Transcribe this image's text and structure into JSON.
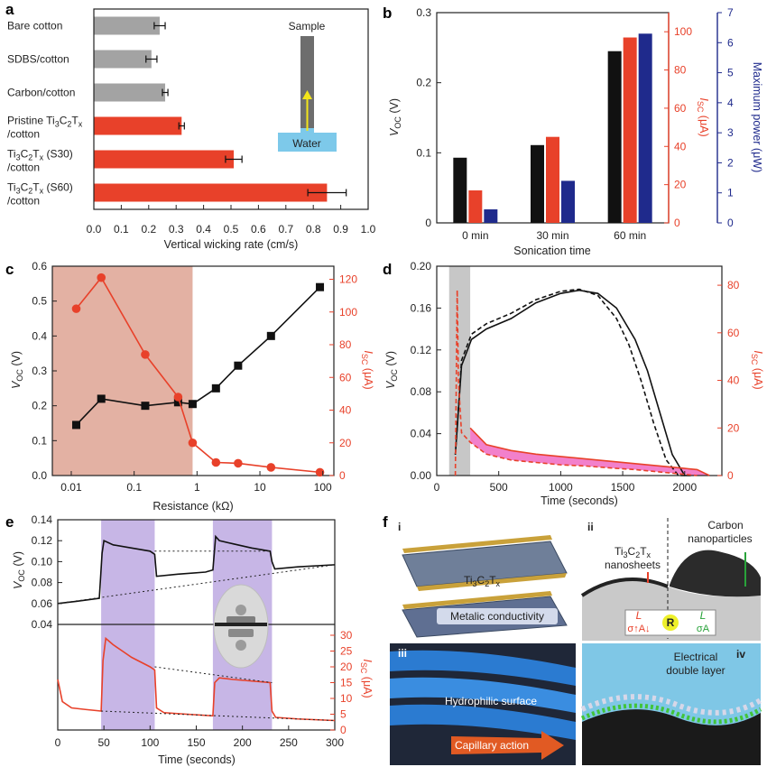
{
  "panel_letters": [
    "a",
    "b",
    "c",
    "d",
    "e",
    "f"
  ],
  "colors": {
    "red": "#e8412a",
    "gray": "#a3a3a3",
    "black": "#111111",
    "blue": "#1f2a8c",
    "pink_fill": "#f06ac2",
    "shade_c": "#e3b1a3",
    "shade_d": "#c7c7c7",
    "shade_e": "#c7b6e6",
    "water": "#7dc9ea"
  },
  "chart_data": [
    {
      "panel": "a",
      "type": "bar",
      "orientation": "horizontal",
      "categories": [
        "Bare cotton",
        "SDBS/cotton",
        "Carbon/cotton",
        "Pristine Ti3C2Tx /cotton",
        "Ti3C2Tx (S30) /cotton",
        "Ti3C2Tx (S60) /cotton"
      ],
      "category_lines": [
        [
          "Bare cotton"
        ],
        [
          "SDBS/cotton"
        ],
        [
          "Carbon/cotton"
        ],
        [
          "Pristine Ti",
          "3",
          "C",
          "2",
          "T",
          "x"
        ],
        [
          "Ti",
          "3",
          "C",
          "2",
          "T",
          "x",
          " (S30)"
        ],
        [
          "Ti",
          "3",
          "C",
          "2",
          "T",
          "x",
          " (S60)"
        ]
      ],
      "category_line2": [
        "",
        "",
        "",
        "/cotton",
        "/cotton",
        "/cotton"
      ],
      "values": [
        0.24,
        0.21,
        0.26,
        0.32,
        0.51,
        0.85
      ],
      "errors": [
        0.02,
        0.02,
        0.01,
        0.01,
        0.03,
        0.07
      ],
      "bar_colors": [
        "#a3a3a3",
        "#a3a3a3",
        "#a3a3a3",
        "#e8412a",
        "#e8412a",
        "#e8412a"
      ],
      "xlabel": "Vertical wicking rate (cm/s)",
      "xlim": [
        0,
        1.0
      ],
      "xticks": [
        "0.0",
        "0.1",
        "0.2",
        "0.3",
        "0.4",
        "0.5",
        "0.6",
        "0.7",
        "0.8",
        "0.9",
        "1.0"
      ],
      "inset_labels": {
        "top": "Sample",
        "bottom": "Water"
      }
    },
    {
      "panel": "b",
      "type": "bar",
      "categories": [
        "0 min",
        "30 min",
        "60 min"
      ],
      "xlabel": "Sonication time",
      "series": [
        {
          "name": "Voc",
          "axis": "left",
          "color": "#111111",
          "values": [
            0.093,
            0.111,
            0.245
          ]
        },
        {
          "name": "Isc",
          "axis": "right1",
          "color": "#e8412a",
          "values": [
            17,
            45,
            97
          ]
        },
        {
          "name": "Maximum power",
          "axis": "right2",
          "color": "#1f2a8c",
          "values": [
            0.45,
            1.4,
            6.3
          ]
        }
      ],
      "axes": {
        "left": {
          "label_main": "V",
          "label_sub": "OC",
          "label_unit": " (V)",
          "ylim": [
            0,
            0.3
          ],
          "ticks": [
            "0",
            "0.1",
            "0.2",
            "0.3"
          ]
        },
        "right1": {
          "label_main": "I",
          "label_sub": "SC",
          "label_unit": " (μA)",
          "ylim": [
            0,
            110
          ],
          "ticks": [
            "0",
            "20",
            "40",
            "60",
            "80",
            "100"
          ]
        },
        "right2": {
          "label": "Maximum power (μW)",
          "ylim": [
            0,
            7
          ],
          "ticks": [
            "0",
            "1",
            "2",
            "3",
            "4",
            "5",
            "6",
            "7"
          ]
        }
      }
    },
    {
      "panel": "c",
      "type": "line",
      "xscale": "log",
      "xlabel": "Resistance (kΩ)",
      "xlim": [
        0.005,
        150
      ],
      "xticks": [
        "0.01",
        "0.1",
        "1",
        "10",
        "100"
      ],
      "shaded_x": [
        0.005,
        0.85
      ],
      "series": [
        {
          "name": "Voc",
          "axis": "left",
          "color": "#111111",
          "marker": "square",
          "x": [
            0.012,
            0.03,
            0.15,
            0.5,
            0.85,
            2,
            4.5,
            15,
            90
          ],
          "y": [
            0.145,
            0.22,
            0.2,
            0.21,
            0.205,
            0.25,
            0.315,
            0.4,
            0.54
          ]
        },
        {
          "name": "Isc",
          "axis": "right",
          "color": "#e8412a",
          "marker": "circle",
          "x": [
            0.012,
            0.03,
            0.15,
            0.5,
            0.85,
            2,
            4.5,
            15,
            90
          ],
          "y": [
            102,
            121,
            74,
            48,
            20,
            8,
            7.5,
            5,
            2
          ]
        }
      ],
      "axes": {
        "left": {
          "label_main": "V",
          "label_sub": "OC",
          "label_unit": " (V)",
          "ylim": [
            0,
            0.6
          ],
          "ticks": [
            "0.0",
            "0.1",
            "0.2",
            "0.3",
            "0.4",
            "0.5",
            "0.6"
          ]
        },
        "right": {
          "label_main": "I",
          "label_sub": "SC",
          "label_unit": " (μA)",
          "ylim": [
            0,
            128
          ],
          "ticks": [
            "0",
            "20",
            "40",
            "60",
            "80",
            "100",
            "120"
          ]
        }
      }
    },
    {
      "panel": "d",
      "type": "line",
      "xlabel": "Time (seconds)",
      "xlim": [
        0,
        2300
      ],
      "xticks": [
        "0",
        "500",
        "1000",
        "1500",
        "2000"
      ],
      "shaded_x": [
        100,
        270
      ],
      "series": [
        {
          "name": "Voc (solid)",
          "axis": "left",
          "color": "#111111",
          "style": "solid",
          "x": [
            150,
            200,
            280,
            400,
            600,
            800,
            1000,
            1150,
            1300,
            1450,
            1600,
            1700,
            1800,
            1900,
            2000,
            2050
          ],
          "y": [
            0.02,
            0.105,
            0.13,
            0.14,
            0.15,
            0.165,
            0.174,
            0.177,
            0.174,
            0.16,
            0.13,
            0.1,
            0.06,
            0.02,
            0.0,
            0.0
          ]
        },
        {
          "name": "Voc (dashed)",
          "axis": "left",
          "color": "#111111",
          "style": "dashed",
          "x": [
            150,
            200,
            280,
            400,
            600,
            800,
            1000,
            1150,
            1300,
            1450,
            1550,
            1650,
            1750,
            1850,
            1950,
            2000
          ],
          "y": [
            0.02,
            0.11,
            0.135,
            0.145,
            0.155,
            0.168,
            0.176,
            0.178,
            0.172,
            0.15,
            0.125,
            0.09,
            0.05,
            0.015,
            0.0,
            0.0
          ]
        },
        {
          "name": "Isc (solid)",
          "axis": "right",
          "color": "#e8412a",
          "style": "solid",
          "x": [
            270,
            400,
            600,
            800,
            1000,
            1200,
            1400,
            1600,
            1800,
            2000,
            2100,
            2200
          ],
          "y": [
            20,
            13,
            10.5,
            9,
            8,
            7,
            6,
            5,
            4,
            3,
            2.5,
            0
          ]
        },
        {
          "name": "Isc (dashed)",
          "axis": "right",
          "color": "#e8412a",
          "style": "dashed",
          "x": [
            150,
            165,
            175,
            200,
            270,
            400,
            600,
            800,
            1000,
            1200,
            1400,
            1600,
            1800,
            2000,
            2100
          ],
          "y": [
            0,
            78,
            40,
            18,
            14,
            9,
            6.5,
            5.5,
            4.5,
            4,
            3.2,
            2.5,
            1.5,
            0.5,
            0
          ]
        }
      ],
      "axes": {
        "left": {
          "label_main": "V",
          "label_sub": "OC",
          "label_unit": " (V)",
          "ylim": [
            0,
            0.2
          ],
          "ticks": [
            "0.00",
            "0.04",
            "0.08",
            "0.12",
            "0.16",
            "0.20"
          ]
        },
        "right": {
          "label_main": "I",
          "label_sub": "SC",
          "label_unit": " (μA)",
          "ylim": [
            0,
            88
          ],
          "ticks": [
            "0",
            "20",
            "40",
            "60",
            "80"
          ]
        }
      }
    },
    {
      "panel": "e",
      "type": "line",
      "xlabel": "Time (seconds)",
      "xlim": [
        0,
        300
      ],
      "xticks": [
        "0",
        "50",
        "100",
        "150",
        "200",
        "250",
        "300"
      ],
      "shaded_x": [
        [
          47,
          105
        ],
        [
          168,
          232
        ]
      ],
      "series": [
        {
          "name": "Voc",
          "axis": "top",
          "color": "#111111",
          "x": [
            0,
            20,
            45,
            48,
            50,
            60,
            80,
            100,
            105,
            107,
            130,
            160,
            168,
            171,
            175,
            190,
            210,
            230,
            232,
            235,
            260,
            300
          ],
          "y": [
            0.06,
            0.062,
            0.065,
            0.108,
            0.12,
            0.116,
            0.113,
            0.11,
            0.107,
            0.086,
            0.088,
            0.09,
            0.092,
            0.124,
            0.12,
            0.117,
            0.113,
            0.11,
            0.1,
            0.093,
            0.095,
            0.097
          ]
        },
        {
          "name": "Isc",
          "axis": "bottom",
          "color": "#e8412a",
          "x": [
            0,
            5,
            15,
            30,
            47,
            49,
            52,
            60,
            70,
            80,
            100,
            105,
            107,
            115,
            140,
            168,
            170,
            175,
            190,
            210,
            230,
            232,
            236,
            260,
            300
          ],
          "y": [
            16,
            9,
            7,
            6.5,
            6,
            22,
            29,
            27,
            25,
            23,
            20,
            19,
            7,
            5.5,
            5,
            4.5,
            15,
            16.5,
            16,
            15.5,
            15,
            6,
            4,
            3.5,
            3
          ]
        }
      ],
      "axes": {
        "top": {
          "label_main": "V",
          "label_sub": "OC",
          "label_unit": " (V)",
          "ylim": [
            0.04,
            0.14
          ],
          "ticks": [
            "0.04",
            "0.06",
            "0.08",
            "0.10",
            "0.12",
            "0.14"
          ]
        },
        "bottom": {
          "label_main": "I",
          "label_sub": "SC",
          "label_unit": " (μA)",
          "ylim": [
            0,
            32
          ],
          "ticks": [
            "0",
            "5",
            "10",
            "15",
            "20",
            "25",
            "30"
          ]
        }
      }
    }
  ],
  "panel_f": {
    "sub_labels": [
      "i",
      "ii",
      "iii",
      "iv"
    ],
    "i_label_parts": [
      "Ti",
      "3",
      "C",
      "2",
      "T",
      "x"
    ],
    "i_caption": "Metalic conductivity",
    "ii_left_parts": [
      "Ti",
      "3",
      "C",
      "2",
      "T",
      "x"
    ],
    "ii_left_line2": "nanosheets",
    "ii_right_line1": "Carbon",
    "ii_right_line2": "nanoparticles",
    "ii_formula": {
      "left": "L",
      "left_den": "σ↑A↓",
      "mid": "R",
      "right": "L",
      "right_den": "σA"
    },
    "iii_caption": "Hydrophilic surface",
    "iii_arrow_text": "Capillary action",
    "iv_caption_line1": "Electrical",
    "iv_caption_line2": "double layer"
  }
}
